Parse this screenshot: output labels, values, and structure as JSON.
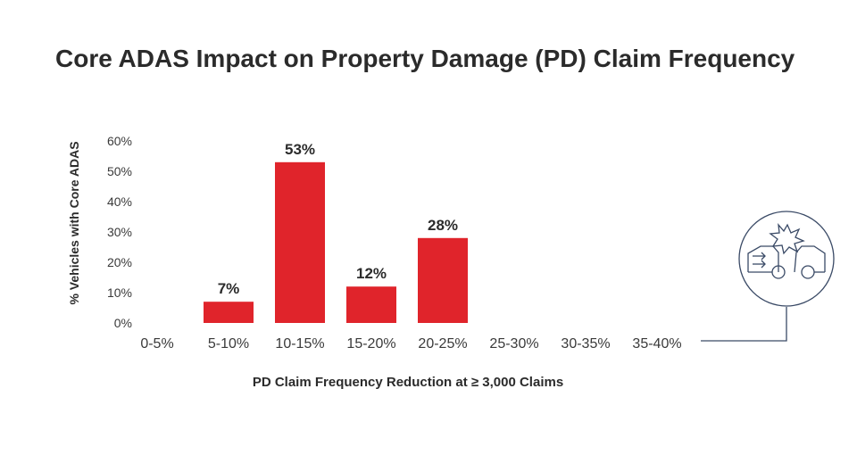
{
  "chart_data": {
    "type": "bar",
    "title": "Core ADAS Impact on Property Damage (PD) Claim Frequency",
    "xlabel": "PD Claim Frequency Reduction at ≥ 3,000 Claims",
    "ylabel": "% Vehicles with Core ADAS",
    "categories": [
      "0-5%",
      "5-10%",
      "10-15%",
      "15-20%",
      "20-25%",
      "25-30%",
      "30-35%",
      "35-40%"
    ],
    "values": [
      0,
      7,
      53,
      12,
      28,
      0,
      0,
      0
    ],
    "data_labels": [
      "",
      "7%",
      "53%",
      "12%",
      "28%",
      "",
      "",
      ""
    ],
    "yticks": [
      "0%",
      "10%",
      "20%",
      "30%",
      "40%",
      "50%",
      "60%"
    ],
    "ylim": [
      0,
      60
    ],
    "bar_color": "#e0242b",
    "grid": false,
    "icon": "car-collision-icon"
  }
}
